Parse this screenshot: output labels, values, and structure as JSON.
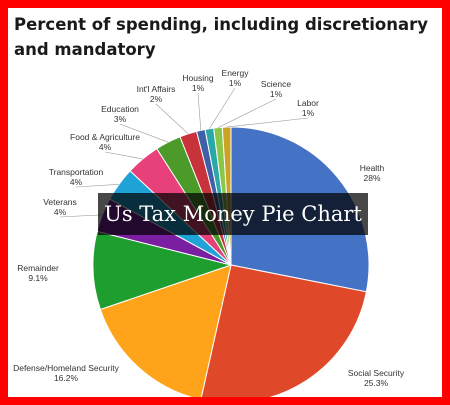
{
  "title": "Percent of spending, including discretionary and mandatory",
  "banner_text": "Us Tax Money Pie Chart",
  "chart_data": {
    "type": "pie",
    "title": "Percent of spending, including discretionary and mandatory",
    "slices": [
      {
        "name": "Health",
        "value": 28,
        "label": "28%",
        "color": "#4472c4"
      },
      {
        "name": "Social Security",
        "value": 25.3,
        "label": "25.3%",
        "color": "#e0482a"
      },
      {
        "name": "Defense/Homeland Security",
        "value": 16.2,
        "label": "16.2%",
        "color": "#ffa31a"
      },
      {
        "name": "Remainder",
        "value": 9.1,
        "label": "9.1%",
        "color": "#1e9e2e"
      },
      {
        "name": "Veterans",
        "value": 4,
        "label": "4%",
        "color": "#7a1fa2"
      },
      {
        "name": "Transportation",
        "value": 4,
        "label": "4%",
        "color": "#1fa3d6"
      },
      {
        "name": "Food & Agriculture",
        "value": 4,
        "label": "4%",
        "color": "#e8407a"
      },
      {
        "name": "Education",
        "value": 3,
        "label": "3%",
        "color": "#4c9a2a"
      },
      {
        "name": "Int'l Affairs",
        "value": 2,
        "label": "2%",
        "color": "#c8323a"
      },
      {
        "name": "Housing",
        "value": 1,
        "label": "1%",
        "color": "#3f5fa8"
      },
      {
        "name": "Energy",
        "value": 1,
        "label": "1%",
        "color": "#2aa8a8"
      },
      {
        "name": "Science",
        "value": 1,
        "label": "1%",
        "color": "#8ac64a"
      },
      {
        "name": "Labor",
        "value": 1,
        "label": "1%",
        "color": "#c9a227"
      }
    ],
    "legend": "none",
    "labels": "outside with leader lines"
  }
}
